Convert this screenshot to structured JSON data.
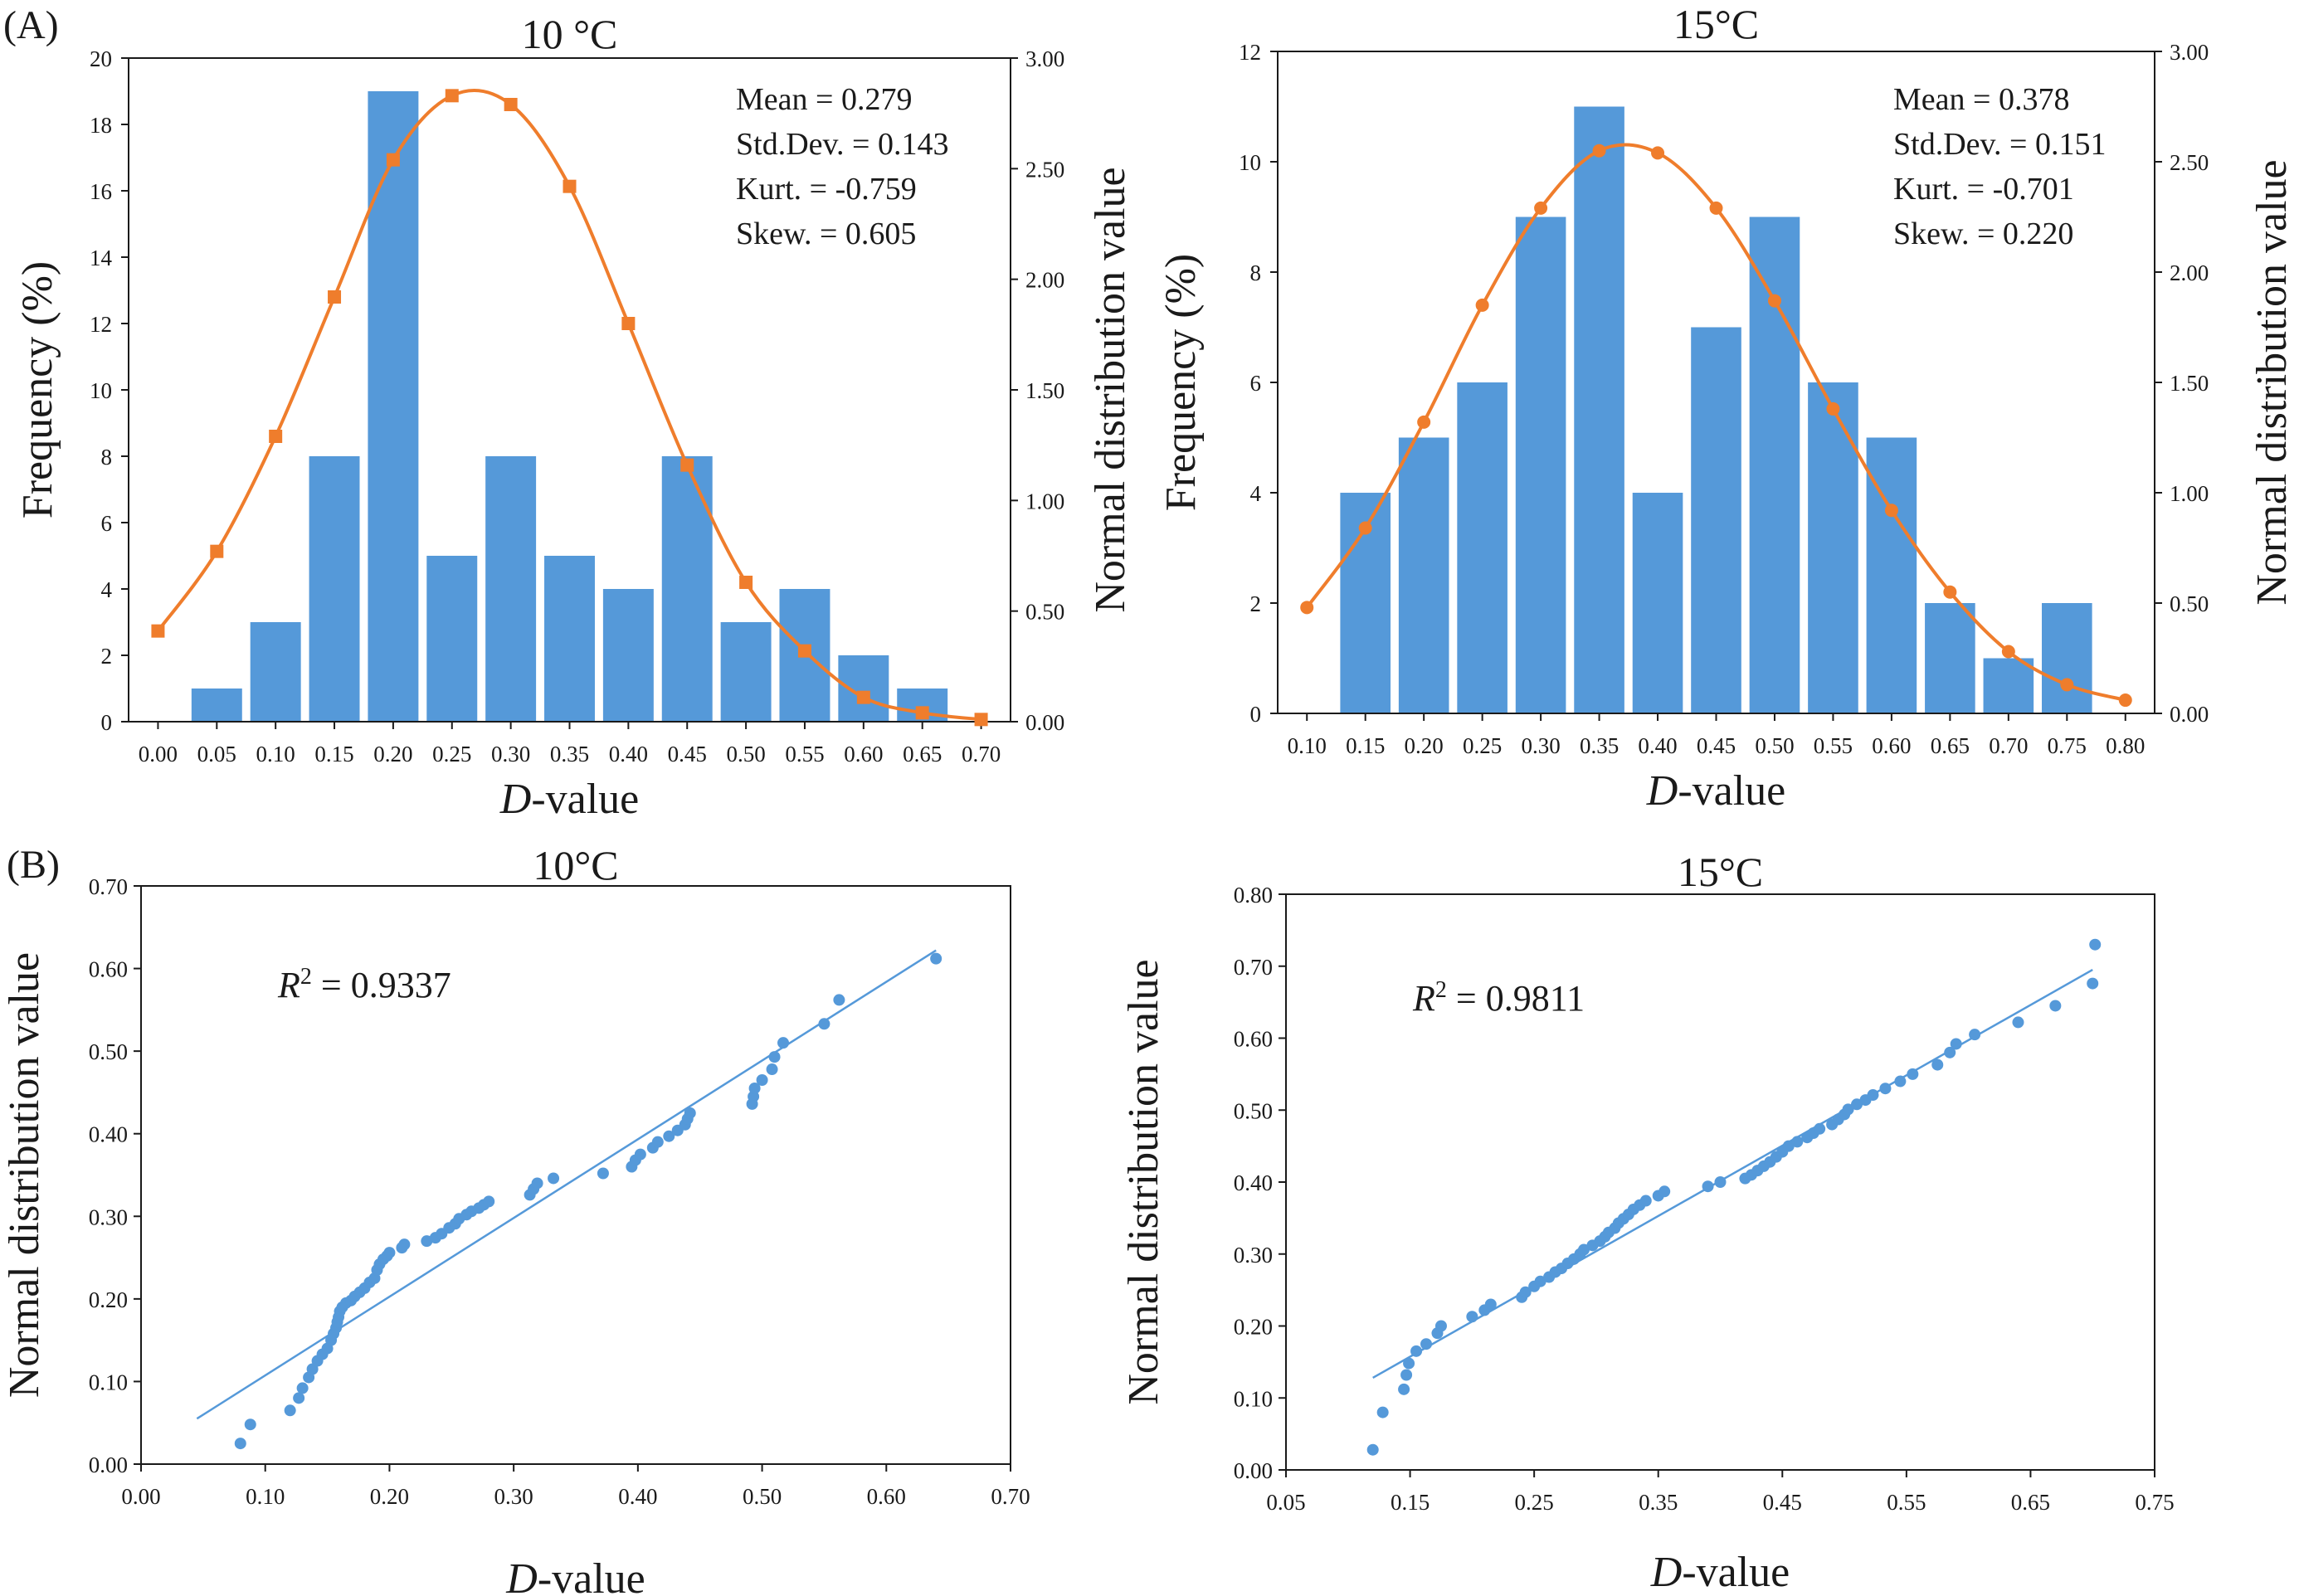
{
  "panel_labels": {
    "a": "(A)",
    "b": "(B)"
  },
  "chart_data": [
    {
      "id": "hist10",
      "type": "bar",
      "title": "10 °C",
      "xlabel_italic": "D",
      "xlabel_rest": "-value",
      "ylabel": "Frequency (%)",
      "y2label": "Normal distribution value",
      "categories": [
        "0.00",
        "0.05",
        "0.10",
        "0.15",
        "0.20",
        "0.25",
        "0.30",
        "0.35",
        "0.40",
        "0.45",
        "0.50",
        "0.55",
        "0.60",
        "0.65",
        "0.70"
      ],
      "values": [
        0,
        1,
        3,
        8,
        19,
        5,
        8,
        5,
        4,
        8,
        3,
        4,
        2,
        1,
        0
      ],
      "ylim": [
        0,
        20
      ],
      "yticks": [
        "0",
        "2",
        "4",
        "6",
        "8",
        "10",
        "12",
        "14",
        "16",
        "18",
        "20"
      ],
      "y2lim": [
        0,
        3
      ],
      "y2ticks": [
        "0.00",
        "0.50",
        "1.00",
        "1.50",
        "2.00",
        "2.50",
        "3.00"
      ],
      "curve": {
        "marker": "square",
        "x": [
          0.0,
          0.05,
          0.1,
          0.15,
          0.2,
          0.25,
          0.3,
          0.35,
          0.4,
          0.45,
          0.5,
          0.55,
          0.6,
          0.65,
          0.7
        ],
        "y": [
          0.41,
          0.77,
          1.29,
          1.92,
          2.54,
          2.83,
          2.79,
          2.42,
          1.8,
          1.16,
          0.63,
          0.32,
          0.11,
          0.04,
          0.01
        ]
      },
      "stats": [
        "Mean = 0.279",
        "Std.Dev. = 0.143",
        "Kurt. = -0.759",
        "Skew. = 0.605"
      ]
    },
    {
      "id": "hist15",
      "type": "bar",
      "title": "15°C",
      "xlabel_italic": "D",
      "xlabel_rest": "-value",
      "ylabel": "Frequency (%)",
      "y2label": "Normal distribution value",
      "categories": [
        "0.10",
        "0.15",
        "0.20",
        "0.25",
        "0.30",
        "0.35",
        "0.40",
        "0.45",
        "0.50",
        "0.55",
        "0.60",
        "0.65",
        "0.70",
        "0.75",
        "0.80"
      ],
      "values": [
        0,
        4,
        5,
        6,
        9,
        11,
        4,
        7,
        9,
        6,
        5,
        2,
        1,
        2,
        0
      ],
      "ylim": [
        0,
        12
      ],
      "yticks": [
        "0",
        "2",
        "4",
        "6",
        "8",
        "10",
        "12"
      ],
      "y2lim": [
        0,
        3
      ],
      "y2ticks": [
        "0.00",
        "0.50",
        "1.00",
        "1.50",
        "2.00",
        "2.50",
        "3.00"
      ],
      "curve": {
        "marker": "circle",
        "x": [
          0.1,
          0.15,
          0.2,
          0.25,
          0.3,
          0.35,
          0.4,
          0.45,
          0.5,
          0.55,
          0.6,
          0.65,
          0.7,
          0.75,
          0.8
        ],
        "y": [
          0.48,
          0.84,
          1.32,
          1.85,
          2.29,
          2.55,
          2.54,
          2.29,
          1.87,
          1.38,
          0.92,
          0.55,
          0.28,
          0.13,
          0.06
        ]
      },
      "stats": [
        "Mean = 0.378",
        "Std.Dev. = 0.151",
        "Kurt. = -0.701",
        "Skew. = 0.220"
      ]
    },
    {
      "id": "qq10",
      "type": "scatter",
      "title": "10°C",
      "xlabel_italic": "D",
      "xlabel_rest": "-value",
      "ylabel": "Normal distribution value",
      "xlim": [
        0,
        0.7
      ],
      "xticks": [
        "0.00",
        "0.10",
        "0.20",
        "0.30",
        "0.40",
        "0.50",
        "0.60",
        "0.70"
      ],
      "ylim": [
        0,
        0.7
      ],
      "yticks": [
        "0.00",
        "0.10",
        "0.20",
        "0.30",
        "0.40",
        "0.50",
        "0.60",
        "0.70"
      ],
      "r2_label": "R",
      "r2_sup": "2",
      "r2_text": " = 0.9337",
      "fit": {
        "x": [
          0.045,
          0.64
        ],
        "y": [
          0.055,
          0.622
        ]
      },
      "points": [
        [
          0.08,
          0.025
        ],
        [
          0.088,
          0.048
        ],
        [
          0.12,
          0.065
        ],
        [
          0.127,
          0.08
        ],
        [
          0.13,
          0.092
        ],
        [
          0.135,
          0.105
        ],
        [
          0.138,
          0.115
        ],
        [
          0.142,
          0.125
        ],
        [
          0.146,
          0.133
        ],
        [
          0.15,
          0.14
        ],
        [
          0.153,
          0.15
        ],
        [
          0.155,
          0.158
        ],
        [
          0.157,
          0.165
        ],
        [
          0.158,
          0.172
        ],
        [
          0.159,
          0.178
        ],
        [
          0.16,
          0.185
        ],
        [
          0.162,
          0.19
        ],
        [
          0.165,
          0.195
        ],
        [
          0.169,
          0.198
        ],
        [
          0.172,
          0.203
        ],
        [
          0.176,
          0.208
        ],
        [
          0.18,
          0.213
        ],
        [
          0.184,
          0.22
        ],
        [
          0.188,
          0.225
        ],
        [
          0.19,
          0.235
        ],
        [
          0.192,
          0.242
        ],
        [
          0.195,
          0.248
        ],
        [
          0.198,
          0.252
        ],
        [
          0.2,
          0.256
        ],
        [
          0.21,
          0.262
        ],
        [
          0.212,
          0.266
        ],
        [
          0.23,
          0.27
        ],
        [
          0.237,
          0.274
        ],
        [
          0.242,
          0.279
        ],
        [
          0.248,
          0.286
        ],
        [
          0.253,
          0.291
        ],
        [
          0.256,
          0.297
        ],
        [
          0.262,
          0.302
        ],
        [
          0.266,
          0.306
        ],
        [
          0.272,
          0.31
        ],
        [
          0.276,
          0.314
        ],
        [
          0.28,
          0.318
        ],
        [
          0.313,
          0.326
        ],
        [
          0.316,
          0.333
        ],
        [
          0.319,
          0.34
        ],
        [
          0.332,
          0.346
        ],
        [
          0.372,
          0.352
        ],
        [
          0.395,
          0.36
        ],
        [
          0.398,
          0.368
        ],
        [
          0.402,
          0.375
        ],
        [
          0.412,
          0.383
        ],
        [
          0.416,
          0.39
        ],
        [
          0.425,
          0.397
        ],
        [
          0.432,
          0.404
        ],
        [
          0.438,
          0.411
        ],
        [
          0.44,
          0.418
        ],
        [
          0.442,
          0.425
        ],
        [
          0.492,
          0.436
        ],
        [
          0.493,
          0.445
        ],
        [
          0.494,
          0.455
        ],
        [
          0.5,
          0.465
        ],
        [
          0.508,
          0.478
        ],
        [
          0.51,
          0.493
        ],
        [
          0.517,
          0.51
        ],
        [
          0.55,
          0.533
        ],
        [
          0.562,
          0.562
        ],
        [
          0.64,
          0.612
        ]
      ]
    },
    {
      "id": "qq15",
      "type": "scatter",
      "title": "15°C",
      "xlabel_italic": "D",
      "xlabel_rest": "-value",
      "ylabel": "Normal distribution value",
      "xlim": [
        0.05,
        0.75
      ],
      "xticks": [
        "0.05",
        "0.15",
        "0.25",
        "0.35",
        "0.45",
        "0.55",
        "0.65",
        "0.75"
      ],
      "ylim": [
        0,
        0.8
      ],
      "yticks": [
        "0.00",
        "0.10",
        "0.20",
        "0.30",
        "0.40",
        "0.50",
        "0.60",
        "0.70",
        "0.80"
      ],
      "r2_label": "R",
      "r2_sup": "2",
      "r2_text": " = 0.9811",
      "fit": {
        "x": [
          0.12,
          0.7
        ],
        "y": [
          0.128,
          0.695
        ]
      },
      "points": [
        [
          0.12,
          0.028
        ],
        [
          0.128,
          0.08
        ],
        [
          0.145,
          0.112
        ],
        [
          0.147,
          0.132
        ],
        [
          0.149,
          0.148
        ],
        [
          0.155,
          0.165
        ],
        [
          0.163,
          0.175
        ],
        [
          0.172,
          0.19
        ],
        [
          0.175,
          0.2
        ],
        [
          0.2,
          0.213
        ],
        [
          0.21,
          0.222
        ],
        [
          0.215,
          0.23
        ],
        [
          0.24,
          0.24
        ],
        [
          0.243,
          0.247
        ],
        [
          0.25,
          0.255
        ],
        [
          0.255,
          0.262
        ],
        [
          0.262,
          0.268
        ],
        [
          0.267,
          0.275
        ],
        [
          0.272,
          0.28
        ],
        [
          0.277,
          0.287
        ],
        [
          0.282,
          0.293
        ],
        [
          0.287,
          0.3
        ],
        [
          0.29,
          0.306
        ],
        [
          0.297,
          0.312
        ],
        [
          0.303,
          0.318
        ],
        [
          0.307,
          0.324
        ],
        [
          0.31,
          0.33
        ],
        [
          0.315,
          0.336
        ],
        [
          0.318,
          0.343
        ],
        [
          0.322,
          0.349
        ],
        [
          0.326,
          0.355
        ],
        [
          0.33,
          0.362
        ],
        [
          0.335,
          0.368
        ],
        [
          0.34,
          0.374
        ],
        [
          0.35,
          0.381
        ],
        [
          0.355,
          0.387
        ],
        [
          0.39,
          0.394
        ],
        [
          0.4,
          0.4
        ],
        [
          0.42,
          0.405
        ],
        [
          0.425,
          0.41
        ],
        [
          0.43,
          0.416
        ],
        [
          0.435,
          0.422
        ],
        [
          0.44,
          0.428
        ],
        [
          0.445,
          0.435
        ],
        [
          0.45,
          0.442
        ],
        [
          0.455,
          0.45
        ],
        [
          0.462,
          0.456
        ],
        [
          0.47,
          0.462
        ],
        [
          0.475,
          0.468
        ],
        [
          0.48,
          0.474
        ],
        [
          0.49,
          0.48
        ],
        [
          0.495,
          0.487
        ],
        [
          0.5,
          0.494
        ],
        [
          0.503,
          0.501
        ],
        [
          0.51,
          0.508
        ],
        [
          0.517,
          0.514
        ],
        [
          0.523,
          0.521
        ],
        [
          0.533,
          0.53
        ],
        [
          0.545,
          0.54
        ],
        [
          0.555,
          0.55
        ],
        [
          0.575,
          0.563
        ],
        [
          0.585,
          0.58
        ],
        [
          0.59,
          0.592
        ],
        [
          0.605,
          0.605
        ],
        [
          0.64,
          0.622
        ],
        [
          0.67,
          0.645
        ],
        [
          0.7,
          0.676
        ],
        [
          0.702,
          0.73
        ]
      ]
    }
  ]
}
